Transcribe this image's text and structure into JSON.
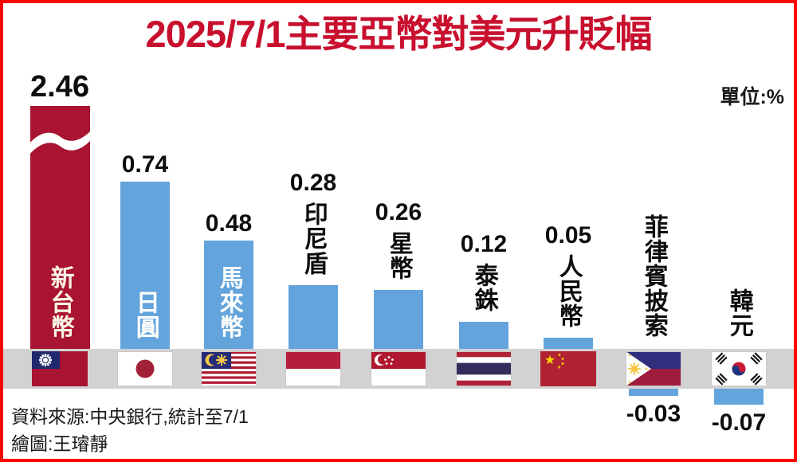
{
  "header": {
    "title": "2025/7/1主要亞幣對美元升貶幅",
    "unit_label": "單位:%"
  },
  "chart_data": {
    "type": "bar",
    "title": "2025/7/1主要亞幣對美元升貶幅",
    "unit": "%",
    "categories": [
      "新台幣",
      "日圓",
      "馬來幣",
      "印尼盾",
      "星幣",
      "泰銖",
      "人民幣",
      "菲律賓披索",
      "韓元"
    ],
    "values": [
      2.46,
      0.74,
      0.48,
      0.28,
      0.26,
      0.12,
      0.05,
      -0.03,
      -0.07
    ],
    "flags": [
      "taiwan",
      "japan",
      "malaysia",
      "indonesia",
      "singapore",
      "thailand",
      "china",
      "philippines",
      "south-korea"
    ],
    "bar_colors": [
      "#A81432",
      "#63A4DC",
      "#63A4DC",
      "#63A4DC",
      "#63A4DC",
      "#63A4DC",
      "#63A4DC",
      "#63A4DC",
      "#63A4DC"
    ],
    "label_inside_bar": [
      true,
      true,
      true,
      false,
      false,
      false,
      false,
      false,
      false
    ],
    "axis_break_category": "新台幣",
    "ylim": [
      -0.07,
      2.46
    ],
    "ylabel": "",
    "xlabel": "",
    "legend": "none",
    "grid": "off"
  },
  "footer": {
    "source": "資料來源:中央銀行,統計至7/1",
    "credit": "繪圖:王璿靜"
  },
  "colors": {
    "title_red": "#C8102E",
    "bar_red": "#A81432",
    "bar_blue": "#63A4DC",
    "band_gray": "#D2D2D2",
    "border_red": "#FF0000",
    "inside_label_text": "#FBF4E6"
  }
}
